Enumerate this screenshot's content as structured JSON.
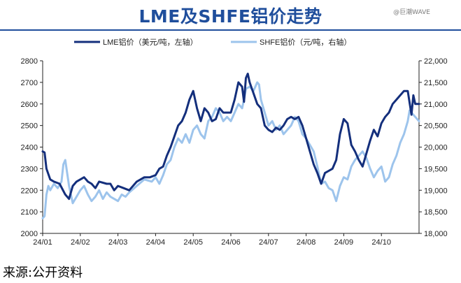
{
  "header": {
    "title": "LME及SHFE铝价走势",
    "watermark": "@巨潮WAVE"
  },
  "footer": {
    "source": "来源:公开资料"
  },
  "colors": {
    "lme": "#142f7c",
    "shfe": "#9dc4ec",
    "axis": "#222222",
    "title": "#1f4e9c"
  },
  "chart_data": {
    "type": "line",
    "title": "LME及SHFE铝价走势",
    "legend_position": "top",
    "grid": false,
    "x_tick_labels": [
      "24/01",
      "24/02",
      "24/03",
      "24/04",
      "24/05",
      "24/06",
      "24/07",
      "24/08",
      "24/09",
      "24/10"
    ],
    "x_range": [
      0,
      10
    ],
    "y_left": {
      "range": [
        2000,
        2800
      ],
      "ticks": [
        "2000",
        "2100",
        "2200",
        "2300",
        "2400",
        "2500",
        "2600",
        "2700",
        "2800"
      ]
    },
    "y_right": {
      "range": [
        18000,
        22000
      ],
      "ticks": [
        "18,000",
        "18,500",
        "19,000",
        "19,500",
        "20,000",
        "20,500",
        "21,000",
        "21,500",
        "22,000"
      ]
    },
    "series": [
      {
        "name": "LME铝价（美元/吨，左轴）",
        "axis": "left",
        "x": [
          0,
          0.05,
          0.1,
          0.2,
          0.3,
          0.45,
          0.6,
          0.7,
          0.8,
          0.9,
          1.0,
          1.1,
          1.2,
          1.3,
          1.4,
          1.5,
          1.7,
          1.8,
          1.9,
          2.0,
          2.15,
          2.3,
          2.5,
          2.7,
          2.85,
          3.0,
          3.1,
          3.2,
          3.3,
          3.4,
          3.5,
          3.6,
          3.7,
          3.8,
          3.9,
          4.0,
          4.1,
          4.2,
          4.3,
          4.4,
          4.5,
          4.6,
          4.7,
          4.8,
          4.9,
          5.0,
          5.1,
          5.2,
          5.3,
          5.35,
          5.4,
          5.45,
          5.5,
          5.6,
          5.7,
          5.8,
          5.9,
          6.0,
          6.1,
          6.2,
          6.3,
          6.4,
          6.5,
          6.6,
          6.7,
          6.8,
          6.9,
          7.0,
          7.1,
          7.2,
          7.3,
          7.4,
          7.5,
          7.6,
          7.7,
          7.8,
          7.9,
          8.0,
          8.1,
          8.2,
          8.3,
          8.4,
          8.5,
          8.6,
          8.7,
          8.8,
          8.9,
          9.0,
          9.1,
          9.2,
          9.3,
          9.4,
          9.5,
          9.6,
          9.7,
          9.8,
          9.85,
          9.9,
          10.0
        ],
        "values": [
          2380,
          2375,
          2300,
          2250,
          2240,
          2230,
          2180,
          2160,
          2220,
          2240,
          2250,
          2260,
          2240,
          2230,
          2210,
          2240,
          2230,
          2230,
          2200,
          2220,
          2210,
          2200,
          2240,
          2260,
          2260,
          2270,
          2300,
          2310,
          2360,
          2400,
          2450,
          2500,
          2520,
          2560,
          2620,
          2660,
          2580,
          2520,
          2580,
          2560,
          2520,
          2530,
          2580,
          2560,
          2560,
          2560,
          2620,
          2700,
          2680,
          2610,
          2720,
          2740,
          2700,
          2650,
          2600,
          2580,
          2500,
          2480,
          2470,
          2490,
          2480,
          2500,
          2530,
          2540,
          2530,
          2540,
          2500,
          2440,
          2380,
          2320,
          2280,
          2230,
          2280,
          2290,
          2300,
          2340,
          2460,
          2530,
          2510,
          2410,
          2380,
          2340,
          2310,
          2370,
          2430,
          2480,
          2450,
          2510,
          2540,
          2560,
          2600,
          2620,
          2640,
          2660,
          2660,
          2550,
          2640,
          2600,
          2600
        ]
      },
      {
        "name": "SHFE铝价（元/吨，右轴）",
        "axis": "right",
        "x": [
          0,
          0.05,
          0.1,
          0.15,
          0.2,
          0.3,
          0.4,
          0.5,
          0.55,
          0.6,
          0.65,
          0.7,
          0.8,
          0.9,
          1.0,
          1.1,
          1.2,
          1.3,
          1.4,
          1.5,
          1.6,
          1.7,
          1.8,
          1.9,
          2.0,
          2.1,
          2.2,
          2.3,
          2.5,
          2.7,
          2.9,
          3.0,
          3.1,
          3.2,
          3.3,
          3.4,
          3.5,
          3.6,
          3.7,
          3.8,
          3.9,
          4.0,
          4.1,
          4.2,
          4.3,
          4.4,
          4.5,
          4.6,
          4.7,
          4.8,
          4.9,
          5.0,
          5.1,
          5.2,
          5.3,
          5.35,
          5.4,
          5.5,
          5.6,
          5.7,
          5.75,
          5.8,
          5.9,
          6.0,
          6.1,
          6.2,
          6.3,
          6.4,
          6.5,
          6.6,
          6.7,
          6.8,
          6.9,
          7.0,
          7.1,
          7.2,
          7.3,
          7.4,
          7.5,
          7.6,
          7.7,
          7.8,
          7.9,
          8.0,
          8.1,
          8.2,
          8.3,
          8.4,
          8.5,
          8.6,
          8.7,
          8.8,
          8.9,
          9.0,
          9.1,
          9.2,
          9.3,
          9.4,
          9.5,
          9.6,
          9.7,
          9.75,
          9.8,
          9.9,
          10.0
        ],
        "values": [
          18350,
          18400,
          18900,
          19100,
          19000,
          19150,
          19050,
          19200,
          19600,
          19700,
          19400,
          19100,
          18700,
          18850,
          19000,
          19100,
          18900,
          18750,
          18850,
          19000,
          18800,
          18950,
          18850,
          18800,
          18750,
          18900,
          18850,
          18950,
          19100,
          19250,
          19200,
          19300,
          19150,
          19350,
          19600,
          19700,
          20000,
          20200,
          20100,
          20300,
          20100,
          20400,
          20500,
          20300,
          20200,
          20600,
          20700,
          20900,
          20800,
          20600,
          20700,
          20600,
          20800,
          21000,
          20900,
          21100,
          21350,
          21400,
          21300,
          21500,
          21450,
          21100,
          20800,
          20500,
          20600,
          20400,
          20500,
          20300,
          20400,
          20500,
          20700,
          20600,
          20300,
          20200,
          20050,
          19900,
          19550,
          19150,
          19200,
          19050,
          19000,
          18750,
          19100,
          19300,
          19250,
          19550,
          19700,
          19800,
          19900,
          19750,
          19500,
          19300,
          19450,
          19550,
          19200,
          19300,
          19600,
          19800,
          20100,
          20300,
          20600,
          20850,
          20800,
          20700,
          20600
        ]
      }
    ]
  }
}
